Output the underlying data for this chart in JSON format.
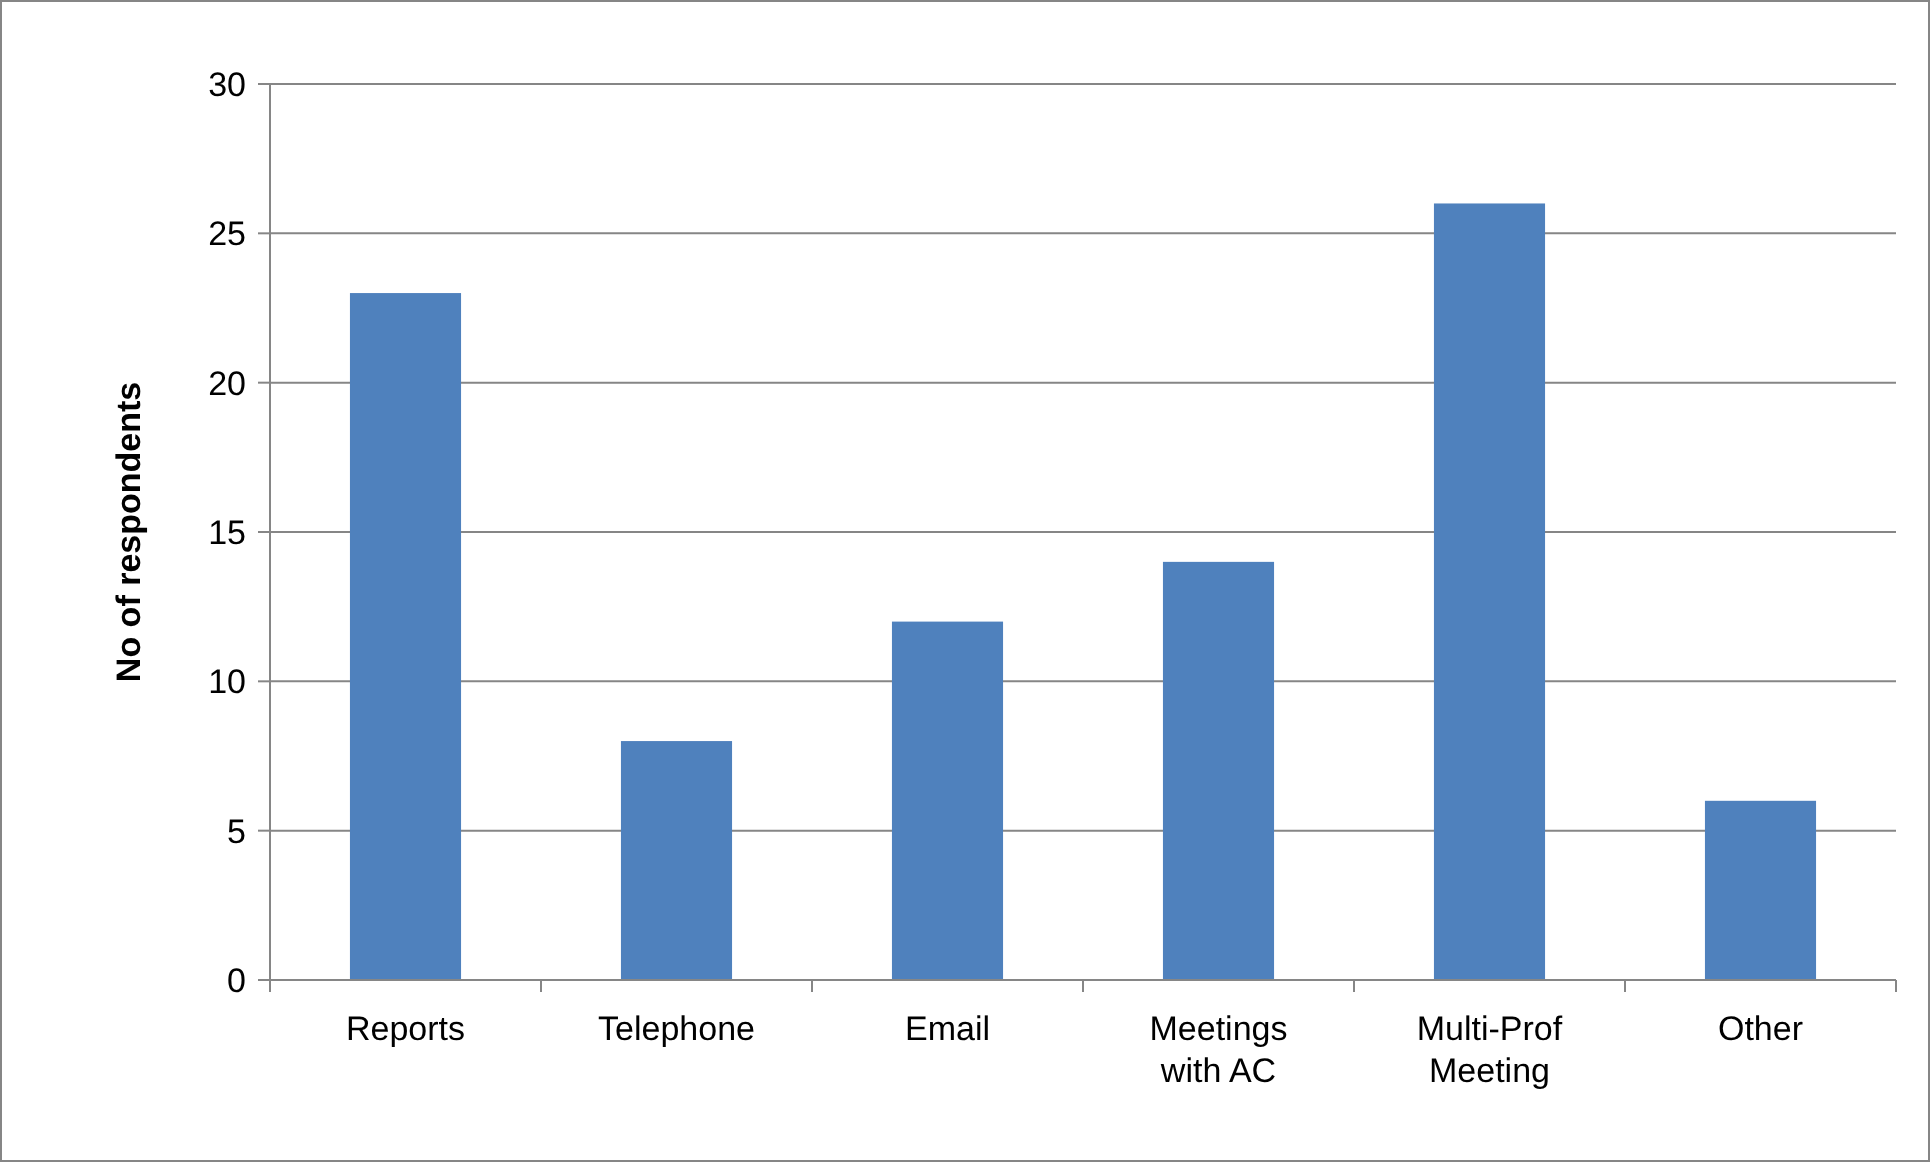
{
  "chart_data": {
    "type": "bar",
    "ylabel": "No of respondents",
    "categories": [
      "Reports",
      "Telephone",
      "Email",
      "Meetings with AC",
      "Multi-Prof Meeting",
      "Other"
    ],
    "values": [
      23,
      8,
      12,
      14,
      26,
      6
    ],
    "color": "#4f81bd",
    "ylim": [
      0,
      30
    ],
    "yticks": [
      0,
      5,
      10,
      15,
      20,
      25,
      30
    ],
    "grid": "y"
  }
}
